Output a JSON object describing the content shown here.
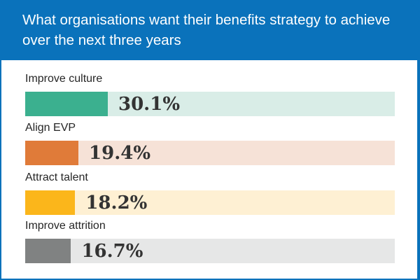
{
  "header": {
    "title": "What organisations want their benefits strategy to achieve over the next three years"
  },
  "chart_data": {
    "type": "bar",
    "orientation": "horizontal",
    "title": "What organisations want their benefits strategy to achieve over the next three years",
    "xlabel": "",
    "ylabel": "",
    "unit": "%",
    "xlim": [
      0,
      100
    ],
    "grid": false,
    "legend": "none",
    "categories": [
      "Improve culture",
      "Align EVP",
      "Attract talent",
      "Improve attrition"
    ],
    "values": [
      30.1,
      19.4,
      18.2,
      16.7
    ],
    "value_labels": [
      "30.1%",
      "19.4%",
      "18.2%",
      "16.7%"
    ],
    "colors": [
      "#3bb08f",
      "#e07b39",
      "#fbb61b",
      "#808282"
    ],
    "track_colors": [
      "#d9ede7",
      "#f6e2d7",
      "#fef0d3",
      "#e6e7e7"
    ]
  }
}
